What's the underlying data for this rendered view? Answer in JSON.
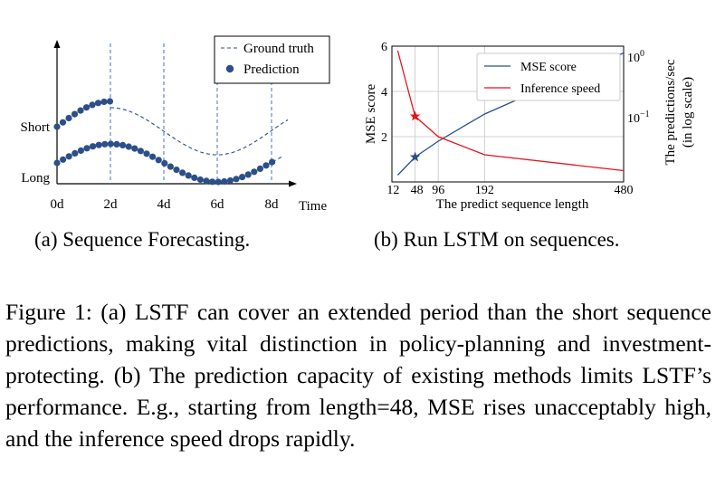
{
  "panel_a": {
    "legend": {
      "ground_truth": "Ground truth",
      "prediction": "Prediction"
    },
    "y_labels": {
      "short": "Short",
      "long": "Long"
    },
    "x_axis_label": "Time",
    "ticks": [
      "0d",
      "2d",
      "4d",
      "6d",
      "8d"
    ],
    "caption": "(a)  Sequence Forecasting."
  },
  "panel_b": {
    "caption": "(b)  Run LSTM on sequences.",
    "chart_data": {
      "type": "line",
      "xlabel": "The predict sequence length",
      "ylabel": "MSE score",
      "y2label_line1": "The predictions/sec",
      "y2label_line2": "(in log scale)",
      "x_ticks": [
        12,
        48,
        96,
        192,
        480
      ],
      "y_ticks": [
        2,
        4,
        6
      ],
      "y2_ticks_base": "10",
      "y2_ticks_exp": [
        "0",
        "−1"
      ],
      "x_range": [
        0,
        480
      ],
      "y_range": [
        0,
        6
      ],
      "grid": true,
      "legend_placement": "top-right",
      "series": [
        {
          "name": "MSE score",
          "color": "#2c4f8a",
          "x": [
            12,
            48,
            96,
            192,
            480
          ],
          "y": [
            0.3,
            1.1,
            1.8,
            3.0,
            5.7
          ]
        },
        {
          "name": "Inference speed",
          "color": "#e4141b",
          "x": [
            12,
            48,
            96,
            192,
            480
          ],
          "y": [
            5.8,
            2.9,
            2.0,
            1.2,
            0.5
          ]
        }
      ],
      "highlight_x": 48
    }
  },
  "caption_text": "Figure 1: (a) LSTF can cover an extended period than the short sequence predictions, making vital distinction in policy-planning and investment-protecting. (b) The prediction capacity of existing methods limits LSTF’s performance. E.g., starting from length=48, MSE rises unacceptably high, and the inference speed drops rapidly."
}
